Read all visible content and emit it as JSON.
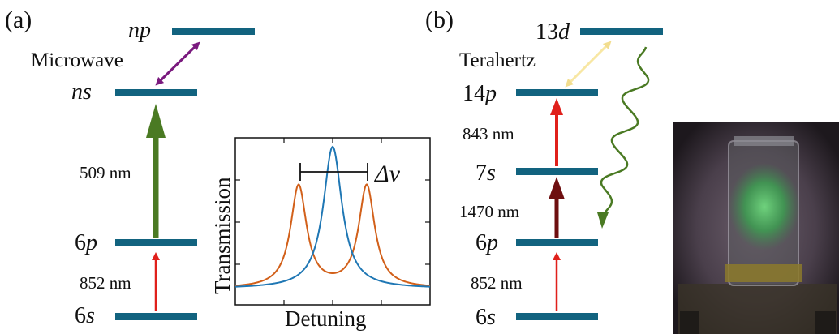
{
  "panel_a": {
    "tag": "(a)",
    "levels": [
      {
        "name": "np",
        "label": "np"
      },
      {
        "name": "ns",
        "label": "ns"
      },
      {
        "name": "6p",
        "num": "6",
        "sym": "p"
      },
      {
        "name": "6s",
        "num": "6",
        "sym": "s"
      }
    ],
    "microwave_label": "Microwave",
    "wavelength_509": "509 nm",
    "wavelength_852": "852 nm",
    "colors": {
      "level": "#12637f",
      "microwave": "#7a1a7e",
      "coupling": "#4a7a23",
      "probe": "#e0201b"
    }
  },
  "inset": {
    "ylabel": "Transmission",
    "xlabel": "Detuning",
    "marker_label": "Δν",
    "colors": {
      "single": "#1f77b4",
      "split": "#d2601a"
    }
  },
  "panel_b": {
    "tag": "(b)",
    "levels": [
      {
        "name": "13d",
        "num": "13",
        "sym": "d"
      },
      {
        "name": "14p",
        "num": "14",
        "sym": "p"
      },
      {
        "name": "7s",
        "num": "7",
        "sym": "s"
      },
      {
        "name": "6p",
        "num": "6",
        "sym": "p"
      },
      {
        "name": "6s",
        "num": "6",
        "sym": "s"
      }
    ],
    "terahertz_label": "Terahertz",
    "wavelength_843": "843 nm",
    "wavelength_1470": "1470 nm",
    "wavelength_852": "852 nm",
    "colors": {
      "level": "#12637f",
      "terahertz": "#f8e7a3",
      "decay": "#4a7a23",
      "probe": "#e0201b",
      "dark_red": "#6e0f10"
    }
  }
}
